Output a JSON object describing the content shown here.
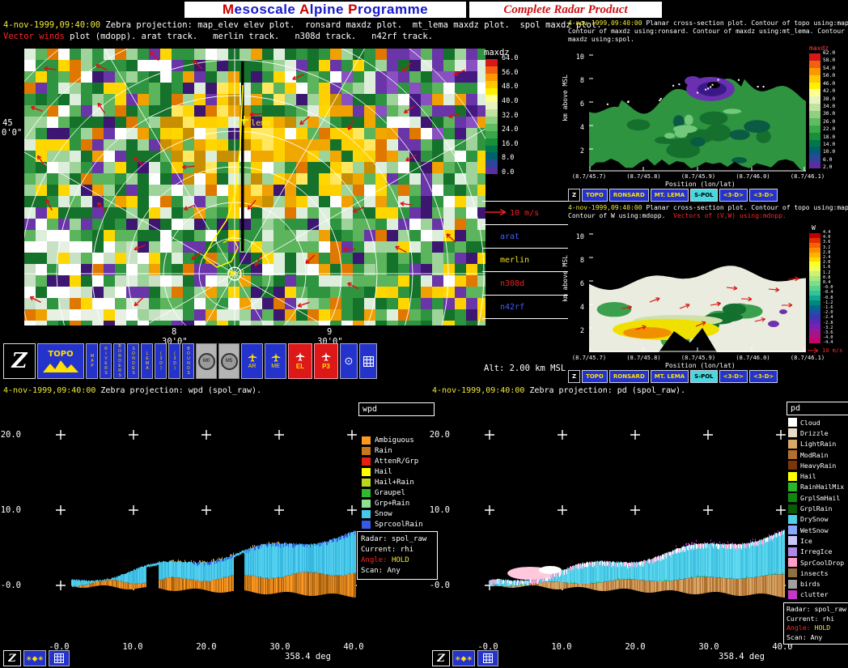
{
  "header": {
    "m1": "M",
    "r1": "esoscale ",
    "m2": "A",
    "r2": "lpine ",
    "m3": "P",
    "r3": "rogramme",
    "subtitle": "Complete Radar Product",
    "accent_red": "#cc0000",
    "accent_blue": "#1818cc"
  },
  "map_panel": {
    "date": "4-nov-1999,09:40:00",
    "desc1": " Zebra projection: map_elev elev plot.  ronsard maxdz plot.  mt_lema maxdz plot.  spol maxdz plot.",
    "desc2_red": "Vector winds",
    "desc2": " plot (mdopp). arat track.   merlin track.   n308d track.   n42rf track.",
    "lat_deg": "45",
    "lat_min": "0'0\"",
    "lon1_deg": "8",
    "lon1_min": "30'0\"",
    "lon2_deg": "9",
    "lon2_min": "30'0\"",
    "site1": "mt_lema",
    "site2": "spol",
    "alt": "Alt: 2.00 km MSL",
    "colorbar": {
      "title": "maxdz",
      "labels": [
        "64.0",
        "56.0",
        "48.0",
        "40.0",
        "32.0",
        "24.0",
        "16.0",
        "8.0",
        "0.0"
      ],
      "colors": [
        "#d81818",
        "#f06010",
        "#ff9800",
        "#ffc800",
        "#fff000",
        "#ffff90",
        "#e8f4c0",
        "#c0e4a0",
        "#90d080",
        "#60bc60",
        "#38a848",
        "#189038",
        "#007848",
        "#006070",
        "#284898",
        "#5a2ea0"
      ]
    },
    "legend": [
      {
        "label": "10 m/s",
        "color": "#ee2020",
        "pad": "34px"
      },
      {
        "label": "arat",
        "color": "#4060ff",
        "pad": "22px"
      },
      {
        "label": "merlin",
        "color": "#f0e020",
        "pad": "22px"
      },
      {
        "label": "n308d",
        "color": "#ee2020",
        "pad": "22px"
      },
      {
        "label": "n42rf",
        "color": "#4060ff",
        "pad": "22px"
      }
    ]
  },
  "main_toolbar": {
    "z": "Z",
    "topo": "TOPO",
    "narrow": [
      "MAP",
      "RIVERS",
      "BORDERS",
      "SONDES",
      "LEMA",
      "(3D)",
      "(3D)",
      "BOUNDS"
    ],
    "gray": [
      "M0",
      "M5"
    ],
    "planes": [
      "AR",
      "ME"
    ],
    "reds": [
      "EL",
      "P3"
    ]
  },
  "xsec1": {
    "date": "4-nov-1999,09:40:00",
    "line1": " Planar cross-section plot. Contour of topo using:map_topo.",
    "line2": "Contour of maxdz using:ronsard. Contour of maxdz using:mt_lema. Contour of",
    "line3": "maxdz using:spol.",
    "ylabel": "km above MSL",
    "yticks": [
      "10",
      "8",
      "6",
      "4",
      "2"
    ],
    "xticks": [
      "(8.7/45.7)",
      "(8.7/45.8)",
      "(8.7/45.9)",
      "(8.7/46.0)",
      "(8.7/46.1)"
    ],
    "xlabel": "Position (lon/lat)",
    "colorbar": {
      "title": "maxdz",
      "title_color": "#ff4040",
      "labels": [
        "62.0",
        "58.0",
        "54.0",
        "50.0",
        "46.0",
        "42.0",
        "38.0",
        "34.0",
        "30.0",
        "26.0",
        "22.0",
        "18.0",
        "14.0",
        "10.0",
        "6.0",
        "2.0"
      ],
      "colors": [
        "#d81818",
        "#f06010",
        "#ff9800",
        "#ffc800",
        "#fff000",
        "#ffff90",
        "#e8f4c0",
        "#c0e4a0",
        "#90d080",
        "#60bc60",
        "#38a848",
        "#189038",
        "#007848",
        "#006070",
        "#284898",
        "#5a2ea0"
      ]
    },
    "toolbar": [
      {
        "label": "Z",
        "bg": "#000000",
        "fg": "#ffffff"
      },
      {
        "label": "TOPO",
        "bg": "#2333cc",
        "fg": "#ffe000"
      },
      {
        "label": "RONSARD",
        "bg": "#2333cc",
        "fg": "#ffe000"
      },
      {
        "label": "MT. LEMA",
        "bg": "#2333cc",
        "fg": "#ffe000"
      },
      {
        "label": "S-POL",
        "bg": "#48d8e0",
        "fg": "#000000"
      },
      {
        "label": "<3-D>",
        "bg": "#2333cc",
        "fg": "#ffe000"
      },
      {
        "label": "<3-D>",
        "bg": "#2333cc",
        "fg": "#ffe000"
      }
    ]
  },
  "xsec2": {
    "date": "4-nov-1999,09:40:00",
    "line1": " Planar cross-section plot. Contour of topo using:map_topo.",
    "line2": "Contour of W using:mdopp.  ",
    "line2_red": "Vectors of (V,W) using:mdopp.",
    "ylabel": "km above MSL",
    "yticks": [
      "10",
      "8",
      "6",
      "4",
      "2"
    ],
    "xticks": [
      "(8.7/45.7)",
      "(8.7/45.8)",
      "(8.7/45.9)",
      "(8.7/46.0)",
      "(8.7/46.1)"
    ],
    "xlabel": "Position (lon/lat)",
    "wind_scale": "10 m/s",
    "colorbar": {
      "title": "W",
      "title_color": "#ffffff",
      "labels": [
        "4.4",
        "4.0",
        "3.6",
        "3.2",
        "2.8",
        "2.4",
        "2.0",
        "1.6",
        "1.2",
        "0.8",
        "0.4",
        "-0.0",
        "-0.4",
        "-0.8",
        "-1.2",
        "-1.6",
        "-2.0",
        "-2.4",
        "-2.8",
        "-3.2",
        "-3.6",
        "-4.0",
        "-4.4"
      ],
      "colors": [
        "#c00000",
        "#e03000",
        "#f86000",
        "#ff8c00",
        "#ffb400",
        "#ffdc00",
        "#ffff20",
        "#f0ff60",
        "#d0f070",
        "#a8e880",
        "#80dc88",
        "#58d090",
        "#30c498",
        "#10a890",
        "#008880",
        "#006890",
        "#2050a0",
        "#3838b0",
        "#5828b8",
        "#7820b0",
        "#981898",
        "#b01080",
        "#c00868"
      ]
    },
    "toolbar": [
      {
        "label": "Z",
        "bg": "#000000",
        "fg": "#ffffff"
      },
      {
        "label": "TOPO",
        "bg": "#2333cc",
        "fg": "#ffe000"
      },
      {
        "label": "RONSARD",
        "bg": "#2333cc",
        "fg": "#ffe000"
      },
      {
        "label": "MT. LEMA",
        "bg": "#2333cc",
        "fg": "#ffe000"
      },
      {
        "label": "S-POL",
        "bg": "#48d8e0",
        "fg": "#000000"
      },
      {
        "label": "<3-D>",
        "bg": "#2333cc",
        "fg": "#ffe000"
      },
      {
        "label": "<3-D>",
        "bg": "#2333cc",
        "fg": "#ffe000"
      }
    ]
  },
  "rhi_left": {
    "date": "4-nov-1999,09:40:00",
    "title": " Zebra projection: wpd (spol_raw).",
    "yticks": [
      "20.0",
      "10.0",
      "-0.0"
    ],
    "xticks": [
      "-0.0",
      "10.0",
      "20.0",
      "30.0",
      "40.0"
    ],
    "deg": "358.4 deg",
    "legend_title": "wpd",
    "legend": [
      {
        "label": "Ambiguous",
        "color": "#ff9820"
      },
      {
        "label": "Rain",
        "color": "#c87818"
      },
      {
        "label": "AttenR/Grp",
        "color": "#e82010"
      },
      {
        "label": "Hail",
        "color": "#ffff00"
      },
      {
        "label": "Hail+Rain",
        "color": "#b8d820"
      },
      {
        "label": "Graupel",
        "color": "#30b830"
      },
      {
        "label": "Grp+Rain",
        "color": "#90e090"
      },
      {
        "label": "Snow",
        "color": "#48c8e8"
      },
      {
        "label": "SprcoolRain",
        "color": "#3858e8"
      }
    ],
    "info": {
      "radar": "Radar: spol_raw",
      "current": "Current: rhi",
      "angle_label": "Angle:",
      "angle_value": "HOLD",
      "scan": "Scan: Any"
    }
  },
  "rhi_right": {
    "date": "4-nov-1999,09:40:00",
    "title": " Zebra projection: pd (spol_raw).",
    "yticks": [
      "20.0",
      "10.0",
      "-0.0"
    ],
    "xticks": [
      "-0.0",
      "10.0",
      "20.0",
      "30.0",
      "40.0"
    ],
    "deg": "358.4 deg",
    "legend_title": "pd",
    "legend": [
      {
        "label": "Cloud",
        "color": "#ffffff"
      },
      {
        "label": "Drizzle",
        "color": "#e8dcc8"
      },
      {
        "label": "LightRain",
        "color": "#d8a868"
      },
      {
        "label": "ModRain",
        "color": "#b07030"
      },
      {
        "label": "HeavyRain",
        "color": "#7a3808"
      },
      {
        "label": "Hail",
        "color": "#ffff00"
      },
      {
        "label": "RainHailMix",
        "color": "#28b828"
      },
      {
        "label": "GrplSmHail",
        "color": "#108810"
      },
      {
        "label": "GrplRain",
        "color": "#0a5a0a"
      },
      {
        "label": "DrySnow",
        "color": "#50d0e8"
      },
      {
        "label": "WetSnow",
        "color": "#88a8ff"
      },
      {
        "label": "Ice",
        "color": "#c8c8f8"
      },
      {
        "label": "IrregIce",
        "color": "#b088e8"
      },
      {
        "label": "SprCoolDrop",
        "color": "#ff9ec8"
      },
      {
        "label": "insects",
        "color": "#907040"
      },
      {
        "label": "birds",
        "color": "#a0a0a0"
      },
      {
        "label": "clutter",
        "color": "#c838c8"
      }
    ],
    "info": {
      "radar": "Radar: spol_raw",
      "current": "Current: rhi",
      "angle_label": "Angle:",
      "angle_value": "HOLD",
      "scan": "Scan: Any"
    }
  },
  "mini_toolbar": {
    "z": "Z",
    "stars": "∗◆∗"
  }
}
